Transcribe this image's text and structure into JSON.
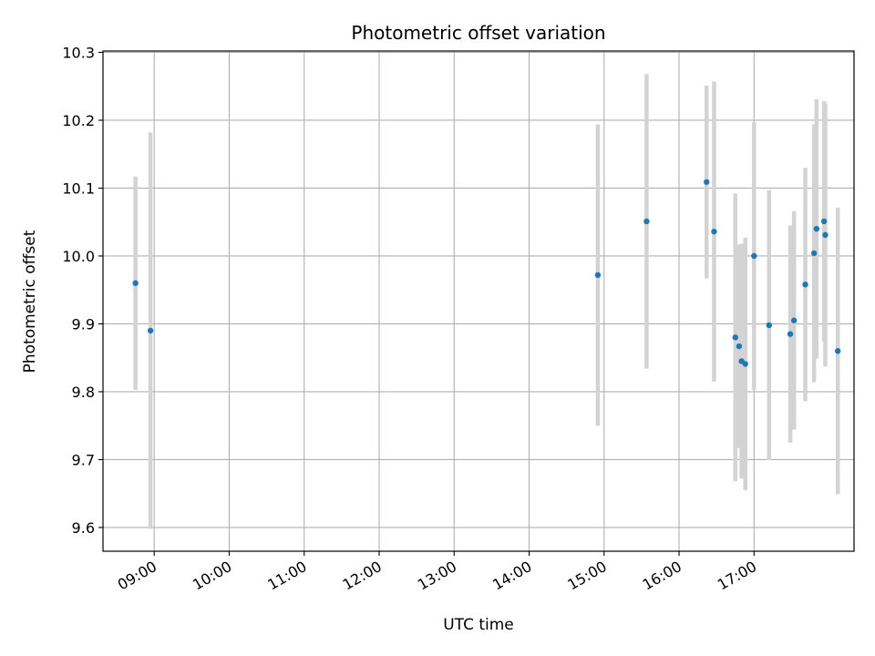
{
  "chart_data": {
    "type": "scatter",
    "title": "Photometric offset variation",
    "xlabel": "UTC time",
    "ylabel": "Photometric offset",
    "xlim": [
      "08:19",
      "18:20"
    ],
    "ylim": [
      9.565,
      10.302
    ],
    "x_ticks": [
      "09:00",
      "10:00",
      "11:00",
      "12:00",
      "13:00",
      "14:00",
      "15:00",
      "16:00",
      "17:00"
    ],
    "y_ticks": [
      "9.6",
      "9.7",
      "9.8",
      "9.9",
      "10.0",
      "10.1",
      "10.2",
      "10.3"
    ],
    "grid": true,
    "point_color": "#1f77b4",
    "errorbar_color": "#d3d3d3",
    "series": [
      {
        "points": [
          {
            "x": "08:45",
            "y": 9.96,
            "err": 0.157
          },
          {
            "x": "08:57",
            "y": 9.89,
            "err": 0.292
          },
          {
            "x": "14:55",
            "y": 9.972,
            "err": 0.222
          },
          {
            "x": "15:34",
            "y": 10.051,
            "err": 0.217
          },
          {
            "x": "16:22",
            "y": 10.109,
            "err": 0.142
          },
          {
            "x": "16:28",
            "y": 10.036,
            "err": 0.221
          },
          {
            "x": "16:45",
            "y": 9.88,
            "err": 0.212
          },
          {
            "x": "16:48",
            "y": 9.867,
            "err": 0.15
          },
          {
            "x": "16:50",
            "y": 9.845,
            "err": 0.173
          },
          {
            "x": "16:53",
            "y": 9.841,
            "err": 0.186
          },
          {
            "x": "17:00",
            "y": 10.0,
            "err": 0.197
          },
          {
            "x": "17:12",
            "y": 9.898,
            "err": 0.199
          },
          {
            "x": "17:29",
            "y": 9.885,
            "err": 0.16
          },
          {
            "x": "17:32",
            "y": 9.905,
            "err": 0.161
          },
          {
            "x": "17:41",
            "y": 9.958,
            "err": 0.172
          },
          {
            "x": "17:48",
            "y": 10.004,
            "err": 0.19
          },
          {
            "x": "17:50",
            "y": 10.04,
            "err": 0.191
          },
          {
            "x": "17:56",
            "y": 10.051,
            "err": 0.177
          },
          {
            "x": "17:57",
            "y": 10.031,
            "err": 0.194
          },
          {
            "x": "18:07",
            "y": 9.86,
            "err": 0.211
          }
        ]
      }
    ]
  }
}
